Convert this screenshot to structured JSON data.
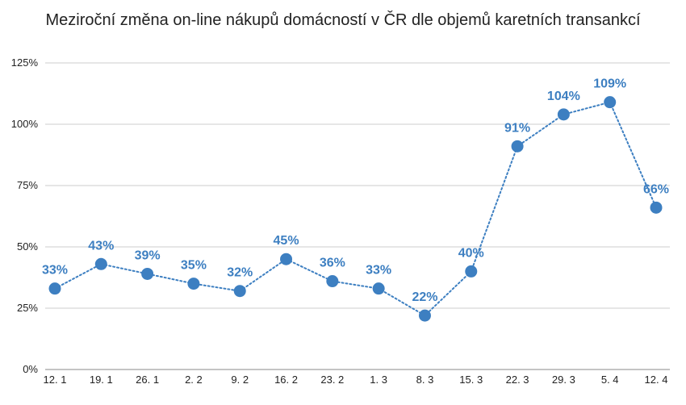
{
  "chart_data": {
    "type": "line",
    "title": "Meziroční změna on-line nákupů domácností v ČR dle objemů karetních transankcí",
    "xlabel": "",
    "ylabel": "",
    "categories": [
      "12. 1",
      "19. 1",
      "26. 1",
      "2. 2",
      "9. 2",
      "16. 2",
      "23. 2",
      "1. 3",
      "8. 3",
      "15. 3",
      "22. 3",
      "29. 3",
      "5. 4",
      "12. 4"
    ],
    "series": [
      {
        "values": [
          33,
          43,
          39,
          35,
          32,
          45,
          36,
          33,
          22,
          40,
          91,
          104,
          109,
          66
        ],
        "data_labels": [
          "33%",
          "43%",
          "39%",
          "35%",
          "32%",
          "45%",
          "36%",
          "33%",
          "22%",
          "40%",
          "91%",
          "104%",
          "109%",
          "66%"
        ]
      }
    ],
    "ylim": [
      0,
      125
    ],
    "yticks": [
      0,
      25,
      50,
      75,
      100,
      125
    ],
    "ytick_labels": [
      "0%",
      "25%",
      "50%",
      "75%",
      "100%",
      "125%"
    ],
    "grid": true,
    "legend": "none",
    "line_style": "dotted",
    "colors": {
      "series": "#3d7fc1",
      "grid": "#cccccc",
      "text": "#222222"
    }
  }
}
